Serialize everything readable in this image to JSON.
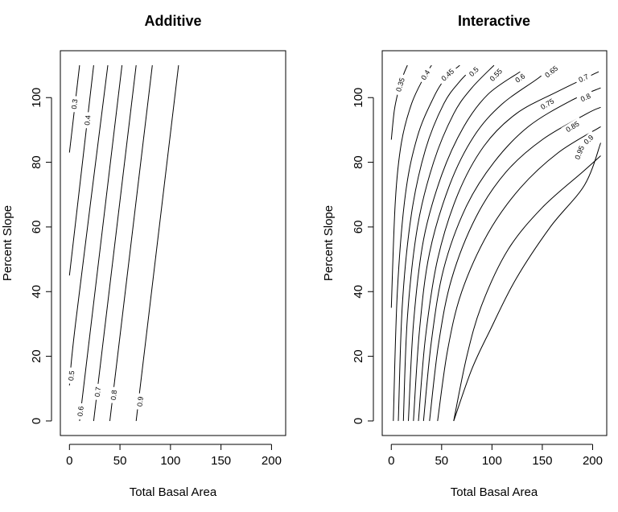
{
  "chart_data": [
    {
      "type": "contour",
      "title": "Additive",
      "xlabel": "Total Basal Area",
      "ylabel": "Percent Slope",
      "xlim": [
        -9,
        214
      ],
      "ylim": [
        -4.5,
        114.5
      ],
      "xticks": [
        0,
        50,
        100,
        150,
        200
      ],
      "yticks": [
        0,
        20,
        40,
        60,
        80,
        100
      ],
      "grid": false,
      "legend": "none",
      "contours": [
        {
          "level": 0.3,
          "label": "0.3",
          "points": [
            [
              0,
              83
            ],
            [
              10,
              110
            ]
          ],
          "label_at": [
            5,
            98
          ]
        },
        {
          "level": 0.4,
          "label": "0.4",
          "points": [
            [
              0,
              45
            ],
            [
              24,
              110
            ]
          ],
          "label_at": [
            18,
            93
          ]
        },
        {
          "level": 0.5,
          "label": "0.5",
          "points": [
            [
              0,
              11
            ],
            [
              6,
              30
            ],
            [
              38,
              110
            ]
          ],
          "label_at": [
            2,
            14
          ]
        },
        {
          "level": 0.6,
          "label": "0.6",
          "points": [
            [
              10,
              0
            ],
            [
              52,
              110
            ]
          ],
          "label_at": [
            11,
            3
          ]
        },
        {
          "level": 0.7,
          "label": "0.7",
          "points": [
            [
              24,
              0
            ],
            [
              66,
              110
            ]
          ],
          "label_at": [
            28,
            9
          ]
        },
        {
          "level": 0.8,
          "label": "0.8",
          "points": [
            [
              40,
              0
            ],
            [
              82,
              110
            ]
          ],
          "label_at": [
            44,
            8
          ]
        },
        {
          "level": 0.9,
          "label": "0.9",
          "points": [
            [
              66,
              0
            ],
            [
              108,
              110
            ]
          ],
          "label_at": [
            70,
            6
          ]
        }
      ]
    },
    {
      "type": "contour",
      "title": "Interactive",
      "xlabel": "Total Basal Area",
      "ylabel": "Percent Slope",
      "xlim": [
        -9,
        214
      ],
      "ylim": [
        -4.5,
        114.5
      ],
      "xticks": [
        0,
        50,
        100,
        150,
        200
      ],
      "yticks": [
        0,
        20,
        40,
        60,
        80,
        100
      ],
      "grid": false,
      "legend": "none",
      "contours": [
        {
          "level": 0.35,
          "label": "0.35",
          "points": [
            [
              0,
              87
            ],
            [
              3,
              96
            ],
            [
              7,
              102
            ],
            [
              12,
              107
            ],
            [
              16,
              110
            ]
          ],
          "label_at": [
            9,
            104
          ]
        },
        {
          "level": 0.4,
          "label": "0.4",
          "points": [
            [
              0,
              35
            ],
            [
              4,
              68
            ],
            [
              10,
              86
            ],
            [
              20,
              98
            ],
            [
              32,
              106
            ],
            [
              40,
              110
            ]
          ],
          "label_at": [
            34,
            107
          ]
        },
        {
          "level": 0.45,
          "label": "0.45",
          "points": [
            [
              2,
              0
            ],
            [
              6,
              40
            ],
            [
              14,
              70
            ],
            [
              26,
              88
            ],
            [
              42,
              100
            ],
            [
              54,
              106
            ],
            [
              68,
              110
            ]
          ],
          "label_at": [
            56,
            107
          ]
        },
        {
          "level": 0.5,
          "label": "0.5",
          "points": [
            [
              7,
              0
            ],
            [
              11,
              36
            ],
            [
              20,
              64
            ],
            [
              34,
              84
            ],
            [
              52,
              98
            ],
            [
              68,
              105
            ],
            [
              84,
              110
            ]
          ],
          "label_at": [
            82,
            108
          ]
        },
        {
          "level": 0.55,
          "label": "0.55",
          "points": [
            [
              12,
              0
            ],
            [
              16,
              32
            ],
            [
              26,
              60
            ],
            [
              42,
              80
            ],
            [
              62,
              95
            ],
            [
              80,
              103
            ],
            [
              102,
              110
            ]
          ],
          "label_at": [
            104,
            107
          ]
        },
        {
          "level": 0.6,
          "label": "0.6",
          "points": [
            [
              17,
              0
            ],
            [
              22,
              30
            ],
            [
              32,
              56
            ],
            [
              50,
              76
            ],
            [
              72,
              91
            ],
            [
              96,
              101
            ],
            [
              128,
              108
            ]
          ],
          "label_at": [
            128,
            106
          ]
        },
        {
          "level": 0.65,
          "label": "0.65",
          "points": [
            [
              22,
              0
            ],
            [
              28,
              28
            ],
            [
              38,
              52
            ],
            [
              58,
              73
            ],
            [
              82,
              88
            ],
            [
              110,
              98
            ],
            [
              146,
              106
            ],
            [
              162,
              110
            ]
          ],
          "label_at": [
            159,
            108
          ]
        },
        {
          "level": 0.7,
          "label": "0.7",
          "points": [
            [
              27,
              0
            ],
            [
              34,
              26
            ],
            [
              46,
              50
            ],
            [
              66,
              70
            ],
            [
              92,
              85
            ],
            [
              124,
              95
            ],
            [
              166,
              102
            ],
            [
              206,
              108
            ]
          ],
          "label_at": [
            191,
            106
          ]
        },
        {
          "level": 0.75,
          "label": "0.75",
          "points": [
            [
              32,
              0
            ],
            [
              40,
              25
            ],
            [
              52,
              47
            ],
            [
              74,
              66
            ],
            [
              102,
              80
            ],
            [
              136,
              91
            ],
            [
              178,
              99
            ],
            [
              208,
              103
            ]
          ],
          "label_at": [
            155,
            98
          ]
        },
        {
          "level": 0.8,
          "label": "0.8",
          "points": [
            [
              38,
              0
            ],
            [
              47,
              24
            ],
            [
              60,
              44
            ],
            [
              84,
              63
            ],
            [
              114,
              77
            ],
            [
              150,
              87
            ],
            [
              194,
              95
            ],
            [
              208,
              97
            ]
          ],
          "label_at": [
            193,
            100
          ]
        },
        {
          "level": 0.85,
          "label": "0.85",
          "points": [
            [
              46,
              0
            ],
            [
              56,
              22
            ],
            [
              70,
              40
            ],
            [
              96,
              58
            ],
            [
              128,
              72
            ],
            [
              166,
              83
            ],
            [
              208,
              91
            ]
          ],
          "label_at": [
            180,
            91
          ]
        },
        {
          "level": 0.9,
          "label": "0.9",
          "points": [
            [
              62,
              0
            ],
            [
              75,
              20
            ],
            [
              90,
              36
            ],
            [
              116,
              53
            ],
            [
              150,
              66
            ],
            [
              190,
              77
            ],
            [
              208,
              82
            ]
          ],
          "label_at": [
            196,
            87
          ]
        },
        {
          "level": 0.95,
          "label": "0.95",
          "points": [
            [
              62,
              0
            ],
            [
              80,
              16
            ],
            [
              98,
              28
            ],
            [
              124,
              44
            ],
            [
              158,
              60
            ],
            [
              192,
              73
            ],
            [
              208,
              86
            ]
          ],
          "label_at": [
            187,
            83
          ]
        }
      ]
    }
  ]
}
